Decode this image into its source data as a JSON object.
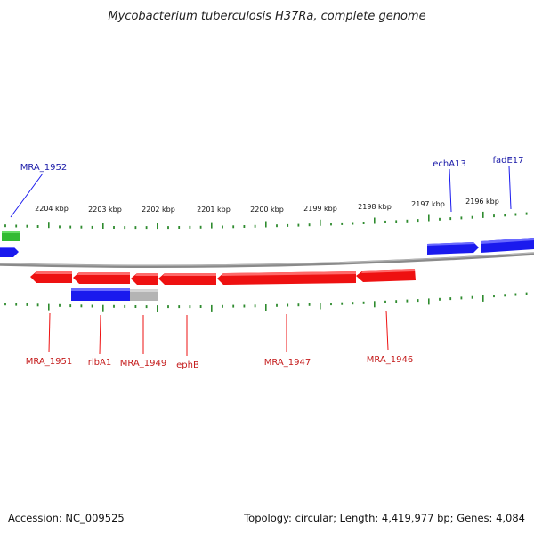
{
  "title": "Mycobacterium tuberculosis H37Ra, complete genome",
  "footer": {
    "accession": "Accession: NC_009525",
    "summary": "Topology: circular; Length: 4,419,977 bp; Genes: 4,084"
  },
  "colors": {
    "backbone": "#808080",
    "tick": "#2e8b2e",
    "gene_reverse": "#ee1111",
    "gene_forward": "#1a1aee",
    "gene_other": "#33bb33",
    "pseudo": "#b4b4b4",
    "label_forward": "#1a1aa8",
    "label_reverse": "#c41a1a"
  },
  "scale_labels": [
    "2204 kbp",
    "2203 kbp",
    "2202 kbp",
    "2201 kbp",
    "2200 kbp",
    "2199 kbp",
    "2198 kbp",
    "2197 kbp",
    "2196 kbp"
  ],
  "gene_labels": {
    "forward": [
      "MRA_1952",
      "echA13",
      "fadE17"
    ],
    "reverse": [
      "MRA_1951",
      "ribA1",
      "MRA_1949",
      "ephB",
      "MRA_1947",
      "MRA_1946"
    ]
  }
}
